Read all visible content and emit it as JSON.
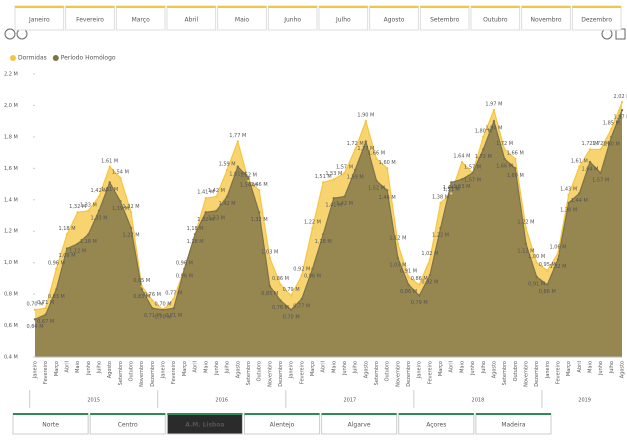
{
  "month_slicer": [
    "Janeiro",
    "Fevereiro",
    "Março",
    "Abril",
    "Maio",
    "Junho",
    "Julho",
    "Agosto",
    "Setembro",
    "Outubro",
    "Novembro",
    "Dezembro"
  ],
  "chart_data": {
    "type": "area",
    "categories": [
      "Janeiro",
      "Fevereiro",
      "Março",
      "Abril",
      "Maio",
      "Junho",
      "Julho",
      "Agosto",
      "Setembro",
      "Outubro",
      "Novembro",
      "Dezembro",
      "Janeiro",
      "Fevereiro",
      "Março",
      "Abril",
      "Maio",
      "Junho",
      "Julho",
      "Agosto",
      "Setembro",
      "Outubro",
      "Novembro",
      "Dezembro",
      "Janeiro",
      "Fevereiro",
      "Março",
      "Abril",
      "Maio",
      "Junho",
      "Julho",
      "Agosto",
      "Setembro",
      "Outubro",
      "Novembro",
      "Dezembro",
      "Janeiro",
      "Fevereiro",
      "Março",
      "Abril",
      "Maio",
      "Junho",
      "Julho",
      "Agosto",
      "Setembro",
      "Outubro",
      "Novembro",
      "Dezembro",
      "Janeiro",
      "Fevereiro",
      "Março",
      "Abril",
      "Maio",
      "Junho",
      "Julho",
      "Agosto"
    ],
    "years": [
      "2015",
      "2015",
      "2015",
      "2015",
      "2015",
      "2015",
      "2015",
      "2015",
      "2015",
      "2015",
      "2015",
      "2015",
      "2016",
      "2016",
      "2016",
      "2016",
      "2016",
      "2016",
      "2016",
      "2016",
      "2016",
      "2016",
      "2016",
      "2016",
      "2017",
      "2017",
      "2017",
      "2017",
      "2017",
      "2017",
      "2017",
      "2017",
      "2017",
      "2017",
      "2017",
      "2017",
      "2018",
      "2018",
      "2018",
      "2018",
      "2018",
      "2018",
      "2018",
      "2018",
      "2018",
      "2018",
      "2018",
      "2018",
      "2019",
      "2019",
      "2019",
      "2019",
      "2019",
      "2019",
      "2019",
      "2019"
    ],
    "series": [
      {
        "name": "Dormidas",
        "color": "#f5c542",
        "values": [
          0.7,
          0.71,
          0.96,
          1.18,
          1.32,
          1.33,
          1.42,
          1.61,
          1.54,
          1.32,
          0.85,
          0.76,
          0.7,
          0.77,
          0.96,
          1.18,
          1.41,
          1.42,
          1.59,
          1.77,
          1.52,
          1.46,
          1.03,
          0.86,
          0.79,
          0.92,
          1.22,
          1.51,
          1.53,
          1.57,
          1.72,
          1.9,
          1.66,
          1.6,
          1.12,
          0.91,
          0.86,
          1.02,
          1.38,
          1.44,
          1.64,
          1.57,
          1.8,
          1.97,
          1.72,
          1.66,
          1.22,
          1.0,
          0.95,
          1.06,
          1.43,
          1.61,
          1.72,
          1.72,
          1.85,
          2.02
        ],
        "value_labels": [
          "0,70 M",
          "0,71 M",
          "0,96 M",
          "1,18 M",
          "1,32 M",
          "1,33 M",
          "1,42 M",
          "1,61 M",
          "1,54 M",
          "1,32 M",
          "0,85 M",
          "0,76 M",
          "0,70 M",
          "0,77 M",
          "0,96 M",
          "1,18 M",
          "1,41 M",
          "1,42 M",
          "1,59 M",
          "1,77 M",
          "1,52 M",
          "1,46 M",
          "1,03 M",
          "0,86 M",
          "0,79 M",
          "0,92 M",
          "1,22 M",
          "1,51 M",
          "1,53 M",
          "1,57 M",
          "1,72 M",
          "1,90 M",
          "1,66 M",
          "1,60 M",
          "1,12 M",
          "0,91 M",
          "0,86 M",
          "1,02 M",
          "1,38 M",
          "1,44 M",
          "1,64 M",
          "1,57 M",
          "1,80 M",
          "1,97 M",
          "1,72 M",
          "1,66 M",
          "1,22 M",
          "1,00 M",
          "0,95 M",
          "1,06 M",
          "1,43 M",
          "1,61 M",
          "1,72 M",
          "1,72 M",
          "1,85 M",
          "2,02 M"
        ]
      },
      {
        "name": "Período Homólogo",
        "color": "#7d7248",
        "values": [
          0.64,
          0.67,
          0.83,
          1.09,
          1.12,
          1.18,
          1.33,
          1.51,
          1.39,
          1.22,
          0.83,
          0.71,
          0.7,
          0.71,
          0.96,
          1.18,
          1.32,
          1.33,
          1.42,
          1.61,
          1.54,
          1.32,
          0.85,
          0.76,
          0.7,
          0.77,
          0.96,
          1.18,
          1.41,
          1.42,
          1.59,
          1.77,
          1.52,
          1.46,
          1.03,
          0.86,
          0.79,
          0.92,
          1.22,
          1.51,
          1.53,
          1.57,
          1.72,
          1.9,
          1.66,
          1.6,
          1.12,
          0.91,
          0.86,
          1.02,
          1.38,
          1.44,
          1.64,
          1.57,
          1.8,
          1.97
        ],
        "value_labels": [
          "0,64 M",
          "0,67 M",
          "0,83 M",
          "1,09 M",
          "1,12 M",
          "1,18 M",
          "1,33 M",
          "1,51 M",
          "1,39 M",
          "1,22 M",
          "0,83 M",
          "0,71 M",
          "0,70 M",
          "0,71 M",
          "0,96 M",
          "1,18 M",
          "1,32 M",
          "1,33 M",
          "1,42 M",
          "1,61 M",
          "1,54 M",
          "1,32 M",
          "0,85 M",
          "0,76 M",
          "0,70 M",
          "0,77 M",
          "0,96 M",
          "1,18 M",
          "1,41 M",
          "1,42 M",
          "1,59 M",
          "1,77 M",
          "1,52 M",
          "1,46 M",
          "1,03 M",
          "0,86 M",
          "0,79 M",
          "0,92 M",
          "1,22 M",
          "1,51 M",
          "1,53 M",
          "1,57 M",
          "1,72 M",
          "1,90 M",
          "1,66 M",
          "1,60 M",
          "1,12 M",
          "0,91 M",
          "0,86 M",
          "1,02 M",
          "1,38 M",
          "1,44 M",
          "1,64 M",
          "1,57 M",
          "1,80 M",
          "1,97 M"
        ]
      }
    ],
    "ylim": [
      0.4,
      2.2
    ],
    "yticks": [
      {
        "value": 0.4,
        "label": "0,4 M"
      },
      {
        "value": 0.6,
        "label": "0,6 M"
      },
      {
        "value": 0.8,
        "label": "0,8 M"
      },
      {
        "value": 1.0,
        "label": "1,0 M"
      },
      {
        "value": 1.2,
        "label": "1,2 M"
      },
      {
        "value": 1.4,
        "label": "1,4 M"
      },
      {
        "value": 1.6,
        "label": "1,6 M"
      },
      {
        "value": 1.8,
        "label": "1,8 M"
      },
      {
        "value": 2.0,
        "label": "2,0 M"
      },
      {
        "value": 2.2,
        "label": "2,2 M"
      }
    ],
    "grid": false
  },
  "region_slicer": {
    "items": [
      "Norte",
      "Centro",
      "A.M. Lisboa",
      "Alentejo",
      "Algarve",
      "Açores",
      "Madeira"
    ],
    "selected": 2
  }
}
